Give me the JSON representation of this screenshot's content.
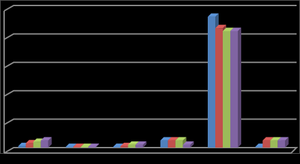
{
  "chart_data": {
    "type": "bar3d",
    "categories": [
      null,
      null,
      null,
      null,
      null,
      null
    ],
    "series": [
      {
        "color": "#4f81bd",
        "values": [
          0.05,
          0.02,
          0.02,
          0.25,
          4.6,
          0.02
        ]
      },
      {
        "color": "#c0504d",
        "values": [
          0.15,
          0.02,
          0.05,
          0.25,
          4.2,
          0.25
        ]
      },
      {
        "color": "#9bbb59",
        "values": [
          0.2,
          0.02,
          0.1,
          0.25,
          4.1,
          0.25
        ]
      },
      {
        "color": "#8064a2",
        "values": [
          0.25,
          0.02,
          0.1,
          0.1,
          4.1,
          0.25
        ]
      }
    ],
    "ylim": [
      0,
      5
    ],
    "yticks": [
      0,
      1,
      2,
      3,
      4,
      5
    ],
    "grid": true
  }
}
